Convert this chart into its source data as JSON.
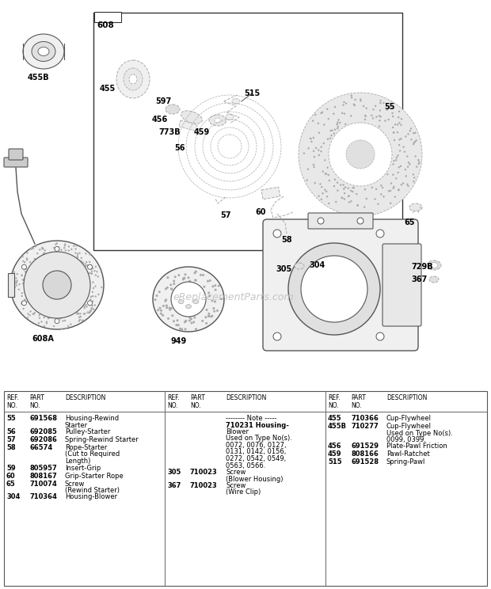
{
  "bg_color": "#ffffff",
  "watermark": "eReplacementParts.com",
  "table": {
    "col1_rows": [
      [
        "55",
        "691568",
        "Housing-Rewind\nStarter"
      ],
      [
        "56",
        "692085",
        "Pulley-Starter"
      ],
      [
        "57",
        "692086",
        "Spring-Rewind Starter"
      ],
      [
        "58",
        "66574",
        "Rope-Starter\n(Cut to Required\nLength)"
      ],
      [
        "59",
        "805957",
        "Insert-Grip"
      ],
      [
        "60",
        "808167",
        "Grip-Starter Rope"
      ],
      [
        "65",
        "710074",
        "Screw\n(Rewind Starter)"
      ],
      [
        "304",
        "710364",
        "Housing-Blower"
      ]
    ],
    "col2_rows": [
      [
        "",
        "",
        "-------- Note -----\n710231 Housing-\nBlower\nUsed on Type No(s).\n0072, 0076, 0127,\n0131, 0142, 0156,\n0272, 0542, 0549,\n0563, 0566."
      ],
      [
        "305",
        "710023",
        "Screw\n(Blower Housing)"
      ],
      [
        "367",
        "710023",
        "Screw\n(Wire Clip)"
      ]
    ],
    "col3_rows": [
      [
        "455",
        "710366",
        "Cup-Flywheel"
      ],
      [
        "455B",
        "710277",
        "Cup-Flywheel\nUsed on Type No(s).\n0099, 0399."
      ],
      [
        "456",
        "691529",
        "Plate-Pawl Friction"
      ],
      [
        "459",
        "808166",
        "Pawl-Ratchet"
      ],
      [
        "515",
        "691528",
        "Spring-Pawl"
      ]
    ]
  },
  "lc": "#555555",
  "lc2": "#aaaaaa"
}
